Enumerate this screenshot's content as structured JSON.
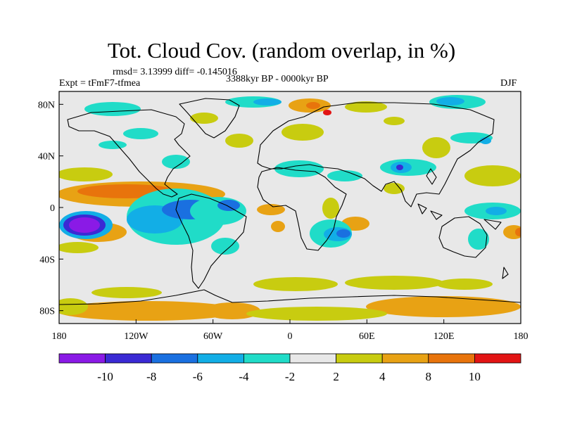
{
  "title": "Tot. Cloud Cov. (random overlap, in %)",
  "stats": "rmsd= 3.13999 diff= -0.145016",
  "experiment": "Expt = tFmF7-tfmea",
  "period": "3388kyr BP - 0000kyr BP",
  "season": "DJF",
  "chart_data": {
    "type": "heatmap",
    "projection": "cylindrical-equidistant",
    "x_ticks": [
      "180",
      "120W",
      "60W",
      "0",
      "60E",
      "120E",
      "180"
    ],
    "y_ticks": [
      "80N",
      "40N",
      "0",
      "40S",
      "80S"
    ],
    "colorbar": {
      "labels": [
        "-10",
        "-8",
        "-6",
        "-4",
        "-2",
        "2",
        "4",
        "8",
        "10"
      ],
      "colors": [
        "#8a1ae6",
        "#3a2ad4",
        "#1a70e0",
        "#12aee6",
        "#20dcc8",
        "#e8e8e8",
        "#c8cc10",
        "#e8a214",
        "#e8740c",
        "#e21414"
      ]
    },
    "color_levels": {
      "neg10": "#8a1ae6",
      "neg8": "#3a2ad4",
      "neg6": "#1a70e0",
      "neg4": "#12aee6",
      "neg2": "#20dcc8",
      "zero": "#e8e8e8",
      "pos2": "#c8cc10",
      "pos4": "#e8a214",
      "pos8": "#e8740c",
      "pos10": "#e21414"
    }
  }
}
